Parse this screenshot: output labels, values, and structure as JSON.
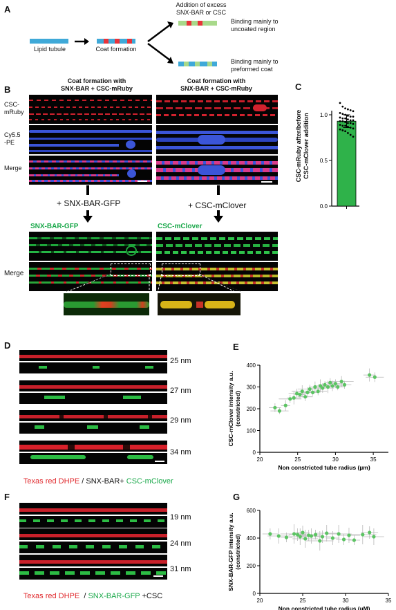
{
  "panelA": {
    "label": "A",
    "tubule_label": "Lipid tubule",
    "coat_label": "Coat formation",
    "addition_label": "Addition of excess\nSNX-BAR or CSC",
    "outcome_top": "Binding mainly to\nuncoated region",
    "outcome_bottom": "Binding mainly to\npreformed coat",
    "colors": {
      "tubule": "#3fa9d8",
      "coat": "#e8333a",
      "added": "#a8d98a"
    }
  },
  "panelB": {
    "label": "B",
    "left_title": "Coat formation with\nSNX-BAR + CSC-mRuby",
    "right_title": "Coat formation with\nSNX-BAR + CSC-mRuby",
    "row_labels": [
      "CSC-\nmRuby",
      "Cy5.5\n-PE",
      "Merge"
    ],
    "left_addition": "+ SNX-BAR-GFP",
    "right_addition": "+ CSC-mClover",
    "left_channel": "SNX-BAR-GFP",
    "right_channel": "CSC-mClover",
    "merge_label": "Merge"
  },
  "panelC": {
    "label": "C",
    "ylabel": "CSC-mRuby after/before\nCSC-mClover addition",
    "chart_data": {
      "type": "bar",
      "categories": [
        ""
      ],
      "values": [
        0.93
      ],
      "error": 0.07,
      "ylim": [
        0.0,
        1.0
      ],
      "yticks": [
        "0.0",
        "0.5",
        "1.0"
      ],
      "points": [
        1.13,
        1.09,
        1.07,
        1.06,
        1.05,
        1.04,
        1.02,
        1.01,
        1.0,
        0.99,
        0.98,
        0.98,
        0.97,
        0.96,
        0.96,
        0.95,
        0.94,
        0.94,
        0.93,
        0.93,
        0.92,
        0.91,
        0.91,
        0.9,
        0.89,
        0.88,
        0.88,
        0.87,
        0.86,
        0.85,
        0.84,
        0.83,
        0.82,
        0.8,
        0.78,
        0.76
      ],
      "bar_color": "#2fb24a"
    }
  },
  "panelD": {
    "label": "D",
    "radii": [
      "25 nm",
      "27 nm",
      "29 nm",
      "34 nm"
    ],
    "legend_red": "Texas red DHPE",
    "legend_mid": " / SNX-BAR+ ",
    "legend_green": "CSC-mClover"
  },
  "panelE": {
    "label": "E",
    "chart_data": {
      "type": "scatter",
      "xlabel": "Non constricted tube radius (µm)",
      "ylabel": "CSC-mClover intensity a.u.\n(constricted)",
      "xlim": [
        20,
        37
      ],
      "ylim": [
        0,
        400
      ],
      "xticks": [
        "20",
        "25",
        "30",
        "35"
      ],
      "yticks": [
        "0",
        "100",
        "200",
        "300",
        "400"
      ],
      "x": [
        22.0,
        22.6,
        23.4,
        24.0,
        24.5,
        24.9,
        25.3,
        25.6,
        26.0,
        26.3,
        26.6,
        27.0,
        27.3,
        27.7,
        28.0,
        28.3,
        28.6,
        29.0,
        29.3,
        29.6,
        30.0,
        30.3,
        30.8,
        31.2,
        34.5,
        35.2
      ],
      "y": [
        205,
        190,
        215,
        245,
        250,
        270,
        265,
        280,
        255,
        275,
        290,
        275,
        300,
        280,
        305,
        295,
        310,
        300,
        320,
        305,
        315,
        300,
        325,
        310,
        355,
        345
      ],
      "color": "#5cc463"
    }
  },
  "panelF": {
    "label": "F",
    "radii": [
      "19 nm",
      "24 nm",
      "31 nm"
    ],
    "legend_red": "Texas red DHPE",
    "legend_sep": "  / ",
    "legend_green": "SNX-BAR-GFP",
    "legend_tail": " +CSC"
  },
  "panelG": {
    "label": "G",
    "chart_data": {
      "type": "scatter",
      "xlabel": "Non constricted tube radius (µM)",
      "ylabel": "SNX-BAR-GFP intensity a.u.\n(constricted)",
      "xlim": [
        20,
        35
      ],
      "ylim": [
        0,
        600
      ],
      "xticks": [
        "20",
        "25",
        "30",
        "35"
      ],
      "yticks": [
        "0",
        "200",
        "400",
        "600"
      ],
      "x": [
        21.2,
        22.2,
        23.1,
        24.0,
        24.4,
        24.7,
        25.0,
        25.3,
        25.7,
        26.0,
        26.5,
        27.0,
        27.3,
        27.8,
        28.5,
        29.2,
        29.8,
        30.4,
        31.0,
        32.0,
        32.8,
        33.3
      ],
      "y": [
        430,
        415,
        405,
        430,
        425,
        410,
        440,
        395,
        420,
        415,
        425,
        380,
        410,
        435,
        400,
        430,
        390,
        420,
        385,
        425,
        440,
        410
      ],
      "color": "#5cc463"
    }
  }
}
